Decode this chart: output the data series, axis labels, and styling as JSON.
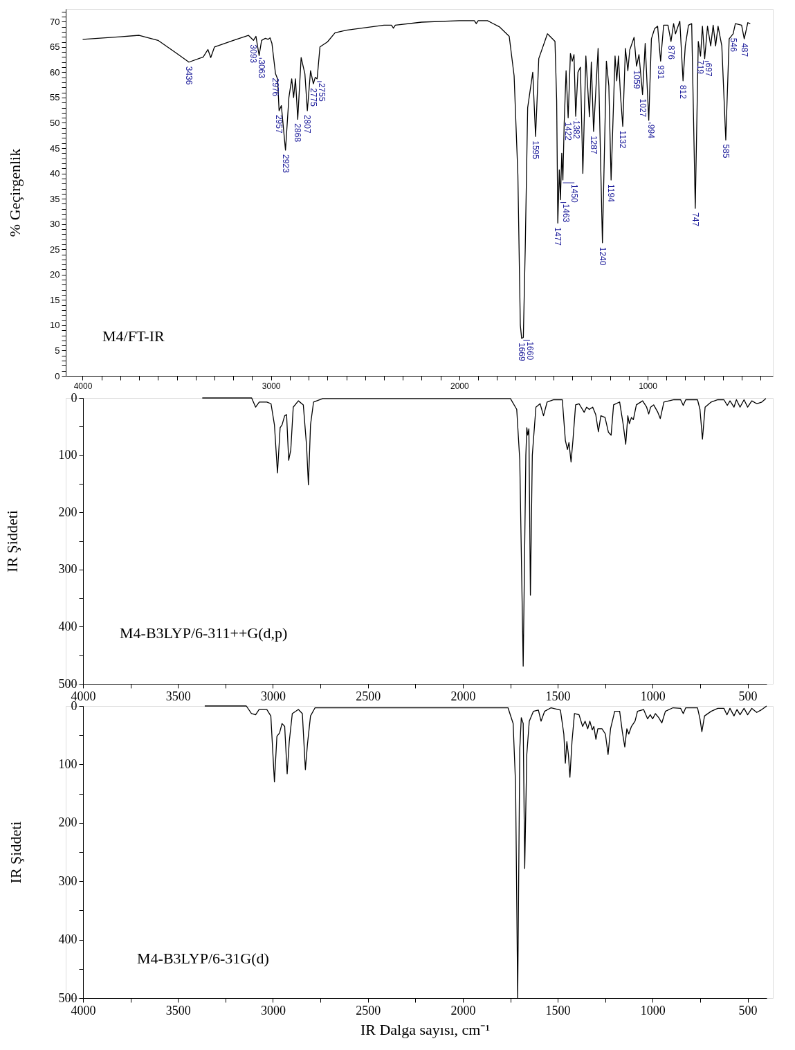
{
  "chart_data": [
    {
      "type": "line",
      "ylabel": "% Geçirgenlik",
      "xlim": [
        4090,
        335
      ],
      "ylim": [
        0,
        72.5
      ],
      "xticks": [
        4000,
        {
          "value": 3900,
          "label": null
        },
        {
          "value": 3800,
          "label": null
        },
        {
          "value": 3700,
          "label": null
        },
        {
          "value": 3600,
          "label": null
        },
        {
          "value": 3500,
          "label": null
        },
        {
          "value": 3400,
          "label": null
        },
        {
          "value": 3300,
          "label": null
        },
        {
          "value": 3200,
          "label": null
        },
        {
          "value": 3100,
          "label": null
        },
        3000,
        {
          "value": 2900,
          "label": null
        },
        {
          "value": 2800,
          "label": null
        },
        {
          "value": 2700,
          "label": null
        },
        {
          "value": 2600,
          "label": null
        },
        {
          "value": 2500,
          "label": null
        },
        {
          "value": 2400,
          "label": null
        },
        {
          "value": 2300,
          "label": null
        },
        {
          "value": 2200,
          "label": null
        },
        {
          "value": 2100,
          "label": null
        },
        2000,
        {
          "value": 1900,
          "label": null
        },
        {
          "value": 1800,
          "label": null
        },
        {
          "value": 1700,
          "label": null
        },
        {
          "value": 1600,
          "label": null
        },
        {
          "value": 1500,
          "label": null
        },
        {
          "value": 1400,
          "label": null
        },
        {
          "value": 1300,
          "label": null
        },
        {
          "value": 1200,
          "label": null
        },
        {
          "value": 1100,
          "label": null
        },
        1000,
        {
          "value": 900,
          "label": null
        },
        {
          "value": 800,
          "label": null
        },
        {
          "value": 700,
          "label": null
        },
        {
          "value": 600,
          "label": null
        },
        {
          "value": 500,
          "label": null
        },
        {
          "value": 400,
          "label": null
        }
      ],
      "yticks": [
        0,
        {
          "value": 1,
          "label": null
        },
        {
          "value": 2,
          "label": null
        },
        {
          "value": 3,
          "label": null
        },
        {
          "value": 4,
          "label": null
        },
        5,
        {
          "value": 6,
          "label": null
        },
        {
          "value": 7,
          "label": null
        },
        {
          "value": 8,
          "label": null
        },
        {
          "value": 9,
          "label": null
        },
        10,
        {
          "value": 11,
          "label": null
        },
        {
          "value": 12,
          "label": null
        },
        {
          "value": 13,
          "label": null
        },
        {
          "value": 14,
          "label": null
        },
        15,
        {
          "value": 16,
          "label": null
        },
        {
          "value": 17,
          "label": null
        },
        {
          "value": 18,
          "label": null
        },
        {
          "value": 19,
          "label": null
        },
        20,
        {
          "value": 21,
          "label": null
        },
        {
          "value": 22,
          "label": null
        },
        {
          "value": 23,
          "label": null
        },
        {
          "value": 24,
          "label": null
        },
        25,
        {
          "value": 26,
          "label": null
        },
        {
          "value": 27,
          "label": null
        },
        {
          "value": 28,
          "label": null
        },
        {
          "value": 29,
          "label": null
        },
        30,
        {
          "value": 31,
          "label": null
        },
        {
          "value": 32,
          "label": null
        },
        {
          "value": 33,
          "label": null
        },
        {
          "value": 34,
          "label": null
        },
        35,
        {
          "value": 36,
          "label": null
        },
        {
          "value": 37,
          "label": null
        },
        {
          "value": 38,
          "label": null
        },
        {
          "value": 39,
          "label": null
        },
        40,
        {
          "value": 41,
          "label": null
        },
        {
          "value": 42,
          "label": null
        },
        {
          "value": 43,
          "label": null
        },
        {
          "value": 44,
          "label": null
        },
        45,
        {
          "value": 46,
          "label": null
        },
        {
          "value": 47,
          "label": null
        },
        {
          "value": 48,
          "label": null
        },
        {
          "value": 49,
          "label": null
        },
        50,
        {
          "value": 51,
          "label": null
        },
        {
          "value": 52,
          "label": null
        },
        {
          "value": 53,
          "label": null
        },
        {
          "value": 54,
          "label": null
        },
        55,
        {
          "value": 56,
          "label": null
        },
        {
          "value": 57,
          "label": null
        },
        {
          "value": 58,
          "label": null
        },
        {
          "value": 59,
          "label": null
        },
        60,
        {
          "value": 61,
          "label": null
        },
        {
          "value": 62,
          "label": null
        },
        {
          "value": 63,
          "label": null
        },
        {
          "value": 64,
          "label": null
        },
        65,
        {
          "value": 66,
          "label": null
        },
        {
          "value": 67,
          "label": null
        },
        {
          "value": 68,
          "label": null
        },
        {
          "value": 69,
          "label": null
        },
        70,
        {
          "value": 71,
          "label": null
        },
        {
          "value": 72,
          "label": null
        }
      ],
      "series": [
        {
          "color": "#000000",
          "x": [
            4000,
            3800,
            3700,
            3600,
            3500,
            3436,
            3360,
            3335,
            3320,
            3300,
            3200,
            3120,
            3093,
            3080,
            3063,
            3050,
            3030,
            3015,
            3005,
            2995,
            2976,
            2965,
            2957,
            2945,
            2923,
            2905,
            2890,
            2880,
            2870,
            2858,
            2840,
            2820,
            2807,
            2790,
            2775,
            2765,
            2755,
            2740,
            2700,
            2660,
            2600,
            2400,
            2360,
            2350,
            2340,
            2200,
            2000,
            1920,
            1910,
            1900,
            1850,
            1830,
            1788,
            1735,
            1709,
            1689,
            1676,
            1669,
            1660,
            1650,
            1637,
            1610,
            1595,
            1578,
            1532,
            1492,
            1483,
            1477,
            1469,
            1463,
            1456,
            1450,
            1443,
            1433,
            1422,
            1410,
            1400,
            1391,
            1382,
            1370,
            1357,
            1344,
            1328,
            1309,
            1299,
            1287,
            1263,
            1240,
            1219,
            1206,
            1194,
            1173,
            1164,
            1155,
            1144,
            1132,
            1118,
            1105,
            1095,
            1072,
            1059,
            1046,
            1027,
            1013,
            994,
            980,
            963,
            947,
            931,
            915,
            892,
            876,
            862,
            852,
            829,
            812,
            800,
            783,
            766,
            747,
            731,
            719,
            709,
            697,
            682,
            665,
            652,
            639,
            626,
            606,
            585,
            567,
            546,
            534,
            501,
            487,
            468,
            455
          ],
          "values": [
            66.5,
            67.0,
            67.3,
            66.3,
            63.7,
            62.0,
            63.0,
            64.5,
            62.9,
            65.0,
            66.3,
            67.3,
            66.3,
            67.1,
            63.3,
            66.3,
            66.7,
            66.5,
            66.8,
            65.7,
            59.7,
            58.7,
            52.4,
            53.4,
            44.6,
            55.0,
            58.7,
            55.0,
            58.7,
            50.7,
            62.9,
            59.7,
            52.4,
            60.3,
            57.7,
            59.0,
            58.7,
            65.0,
            66.0,
            67.8,
            68.3,
            69.3,
            69.3,
            68.7,
            69.3,
            69.9,
            70.2,
            70.2,
            69.6,
            70.2,
            70.2,
            69.8,
            69.0,
            67.1,
            59.3,
            39.7,
            10.0,
            7.4,
            7.6,
            25.0,
            53.0,
            60.0,
            47.3,
            62.7,
            67.6,
            66.1,
            54.4,
            30.2,
            40.7,
            34.8,
            44.0,
            38.7,
            50.0,
            60.3,
            51.0,
            63.7,
            62.2,
            63.5,
            51.3,
            60.0,
            61.0,
            40.0,
            63.2,
            51.2,
            62.0,
            48.3,
            64.7,
            26.3,
            62.2,
            57.3,
            38.7,
            63.2,
            58.3,
            63.2,
            55.4,
            49.3,
            64.7,
            60.3,
            64.4,
            66.9,
            61.2,
            63.5,
            55.6,
            65.7,
            50.5,
            66.6,
            68.6,
            69.1,
            62.2,
            69.3,
            69.3,
            66.1,
            69.6,
            67.6,
            70.1,
            58.3,
            65.2,
            69.3,
            69.6,
            33.1,
            66.1,
            63.2,
            69.1,
            62.7,
            69.1,
            65.2,
            69.3,
            65.2,
            69.1,
            65.2,
            46.6,
            66.6,
            67.6,
            69.6,
            69.3,
            66.6,
            69.8,
            69.6
          ]
        }
      ],
      "annotations": [
        "M4/FT-IR",
        {
          "text": "3436",
          "x": 3436,
          "y": 62.0
        },
        {
          "text": "3093",
          "x": 3093,
          "y": 66.3
        },
        {
          "text": "3063",
          "x": 3063,
          "y": 63.3
        },
        {
          "text": "2976",
          "x": 2976,
          "y": 59.7
        },
        {
          "text": "2957",
          "x": 2957,
          "y": 52.4
        },
        {
          "text": "2923",
          "x": 2923,
          "y": 44.6
        },
        {
          "text": "2868",
          "x": 2858,
          "y": 50.7
        },
        {
          "text": "2807",
          "x": 2807,
          "y": 52.4
        },
        {
          "text": "2775",
          "x": 2775,
          "y": 57.7
        },
        {
          "text": "2755",
          "x": 2755,
          "y": 58.7
        },
        {
          "text": "1669",
          "x": 1669,
          "y": 7.4
        },
        {
          "text": "1660",
          "x": 1660,
          "y": 7.6
        },
        {
          "text": "1595",
          "x": 1595,
          "y": 47.3
        },
        {
          "text": "1477",
          "x": 1477,
          "y": 30.2
        },
        {
          "text": "1463",
          "x": 1463,
          "y": 34.8
        },
        {
          "text": "1450",
          "x": 1450,
          "y": 38.7
        },
        {
          "text": "1422",
          "x": 1422,
          "y": 51.0
        },
        {
          "text": "1382",
          "x": 1382,
          "y": 51.3
        },
        {
          "text": "1287",
          "x": 1287,
          "y": 48.3
        },
        {
          "text": "1240",
          "x": 1240,
          "y": 26.3
        },
        {
          "text": "1194",
          "x": 1194,
          "y": 38.7
        },
        {
          "text": "1132",
          "x": 1132,
          "y": 49.3
        },
        {
          "text": "1059",
          "x": 1059,
          "y": 61.2
        },
        {
          "text": "1027",
          "x": 1027,
          "y": 55.6
        },
        {
          "text": "994",
          "x": 994,
          "y": 50.5
        },
        {
          "text": "931",
          "x": 931,
          "y": 62.2
        },
        {
          "text": "876",
          "x": 876,
          "y": 66.1
        },
        {
          "text": "812",
          "x": 812,
          "y": 58.3
        },
        {
          "text": "747",
          "x": 747,
          "y": 33.1
        },
        {
          "text": "719",
          "x": 719,
          "y": 63.2
        },
        {
          "text": "697",
          "x": 697,
          "y": 62.7
        },
        {
          "text": "585",
          "x": 585,
          "y": 46.6
        },
        {
          "text": "546",
          "x": 546,
          "y": 67.6
        },
        {
          "text": "487",
          "x": 487,
          "y": 66.6
        }
      ]
    },
    {
      "type": "line",
      "ylabel": "IR Şiddeti",
      "xlim": [
        4000,
        400
      ],
      "ylim": [
        500,
        0
      ],
      "xticks": [
        4000,
        {
          "value": 3750,
          "label": null
        },
        3500,
        {
          "value": 3250,
          "label": null
        },
        3000,
        {
          "value": 2750,
          "label": null
        },
        2500,
        {
          "value": 2250,
          "label": null
        },
        2000,
        {
          "value": 1750,
          "label": null
        },
        1500,
        {
          "value": 1250,
          "label": null
        },
        1000,
        {
          "value": 750,
          "label": null
        },
        500
      ],
      "yticks": [
        0,
        {
          "value": 50,
          "label": null
        },
        100,
        {
          "value": 150,
          "label": null
        },
        200,
        {
          "value": 250,
          "label": null
        },
        300,
        {
          "value": 350,
          "label": null
        },
        400,
        {
          "value": 450,
          "label": null
        },
        500
      ],
      "series": [
        {
          "color": "#000000",
          "x": [
            3372,
            3112,
            3091,
            3072,
            3032,
            3010,
            2992,
            2976,
            2962,
            2952,
            2938,
            2928,
            2917,
            2906,
            2893,
            2866,
            2840,
            2823,
            2813,
            2802,
            2786,
            2738,
            1749,
            1716,
            1700,
            1682,
            1668,
            1663,
            1658,
            1652,
            1644,
            1634,
            1615,
            1593,
            1575,
            1556,
            1521,
            1476,
            1460,
            1449,
            1441,
            1430,
            1420,
            1406,
            1388,
            1361,
            1348,
            1334,
            1316,
            1300,
            1286,
            1273,
            1251,
            1233,
            1219,
            1206,
            1174,
            1155,
            1142,
            1131,
            1123,
            1112,
            1102,
            1086,
            1053,
            1032,
            1021,
            1011,
            995,
            973,
            960,
            941,
            888,
            853,
            839,
            826,
            764,
            751,
            738,
            724,
            692,
            657,
            625,
            607,
            593,
            572,
            559,
            540,
            519,
            500,
            478,
            452,
            425,
            404
          ],
          "values": [
            0,
            0,
            16,
            7,
            7,
            10,
            47,
            131,
            52,
            47,
            31,
            29,
            109,
            91,
            16,
            5,
            12,
            83,
            152,
            47,
            7,
            1,
            1,
            20,
            109,
            469,
            100,
            52,
            65,
            54,
            345,
            100,
            16,
            10,
            31,
            7,
            3,
            3,
            74,
            90,
            78,
            112,
            74,
            12,
            10,
            25,
            16,
            20,
            16,
            29,
            59,
            31,
            34,
            60,
            65,
            12,
            7,
            47,
            81,
            31,
            45,
            34,
            38,
            12,
            5,
            16,
            28,
            16,
            12,
            25,
            36,
            7,
            3,
            3,
            13,
            3,
            3,
            20,
            72,
            16,
            7,
            3,
            3,
            13,
            5,
            16,
            3,
            16,
            3,
            16,
            5,
            10,
            7,
            1
          ]
        }
      ],
      "annotations": [
        "M4-B3LYP/6-311++G(d,p)"
      ]
    },
    {
      "type": "line",
      "ylabel": "IR Şiddeti",
      "xlabel": "IR Dalga sayısı, cm⁻¹",
      "xlim": [
        4000,
        400
      ],
      "ylim": [
        500,
        0
      ],
      "xticks": [
        4000,
        {
          "value": 3750,
          "label": null
        },
        3500,
        {
          "value": 3250,
          "label": null
        },
        3000,
        {
          "value": 2750,
          "label": null
        },
        2500,
        {
          "value": 2250,
          "label": null
        },
        2000,
        {
          "value": 1750,
          "label": null
        },
        1500,
        {
          "value": 1250,
          "label": null
        },
        1000,
        {
          "value": 750,
          "label": null
        },
        500
      ],
      "yticks": [
        0,
        {
          "value": 50,
          "label": null
        },
        100,
        {
          "value": 150,
          "label": null
        },
        200,
        {
          "value": 250,
          "label": null
        },
        300,
        {
          "value": 350,
          "label": null
        },
        400,
        {
          "value": 450,
          "label": null
        },
        500
      ],
      "series": [
        {
          "color": "#000000",
          "x": [
            3359,
            3140,
            3113,
            3091,
            3073,
            3032,
            3011,
            2992,
            2979,
            2965,
            2952,
            2938,
            2925,
            2914,
            2898,
            2866,
            2845,
            2829,
            2818,
            2802,
            2778,
            1762,
            1735,
            1722,
            1711,
            1700,
            1692,
            1682,
            1674,
            1663,
            1650,
            1628,
            1602,
            1588,
            1569,
            1535,
            1486,
            1468,
            1460,
            1452,
            1444,
            1436,
            1425,
            1412,
            1388,
            1369,
            1356,
            1342,
            1331,
            1318,
            1310,
            1299,
            1289,
            1267,
            1249,
            1235,
            1222,
            1200,
            1174,
            1160,
            1147,
            1136,
            1126,
            1112,
            1093,
            1080,
            1048,
            1027,
            1013,
            1000,
            986,
            968,
            952,
            933,
            893,
            853,
            839,
            826,
            764,
            751,
            741,
            727,
            692,
            657,
            625,
            609,
            593,
            572,
            556,
            540,
            519,
            500,
            478,
            452,
            425,
            400
          ],
          "values": [
            0,
            0,
            13,
            15,
            6,
            6,
            17,
            130,
            52,
            46,
            30,
            35,
            116,
            61,
            13,
            6,
            13,
            109,
            65,
            17,
            3,
            3,
            30,
            135,
            500,
            74,
            20,
            30,
            278,
            83,
            26,
            9,
            7,
            26,
            9,
            3,
            7,
            48,
            98,
            61,
            83,
            122,
            61,
            13,
            15,
            35,
            26,
            39,
            26,
            41,
            35,
            57,
            39,
            39,
            48,
            83,
            39,
            9,
            9,
            44,
            70,
            39,
            48,
            35,
            26,
            9,
            6,
            22,
            15,
            22,
            13,
            20,
            29,
            9,
            3,
            4,
            13,
            3,
            3,
            22,
            44,
            17,
            9,
            4,
            4,
            15,
            4,
            17,
            6,
            15,
            4,
            15,
            4,
            11,
            6,
            0
          ]
        }
      ],
      "annotations": [
        "M4-B3LYP/6-31G(d)"
      ]
    }
  ]
}
